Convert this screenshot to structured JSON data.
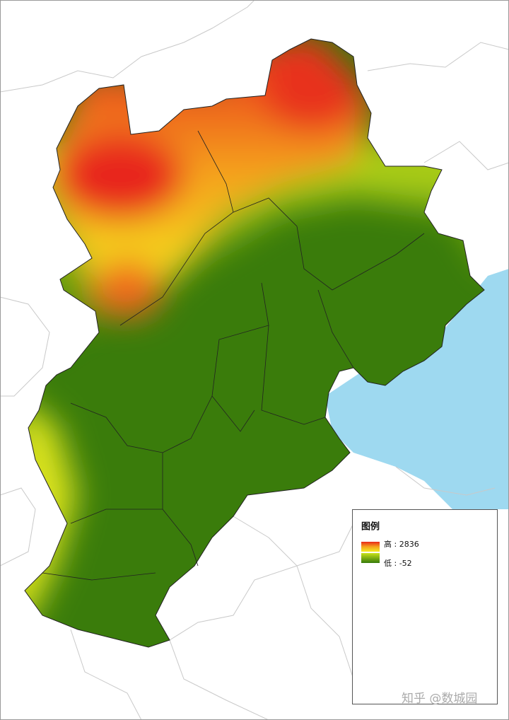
{
  "legend": {
    "title": "图例",
    "high_label": "高 : 2836",
    "low_label": "低 : -52"
  },
  "watermark": "知乎 @数城园"
}
